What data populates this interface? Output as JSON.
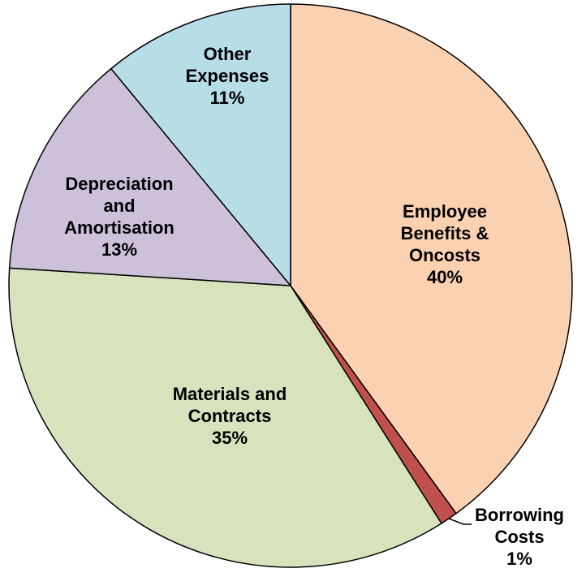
{
  "chart_data": {
    "type": "pie",
    "slices": [
      {
        "key": "employee",
        "lines": [
          "Employee",
          "Benefits &",
          "Oncosts"
        ],
        "percent_label": "40%",
        "value": 40,
        "color": "#fbd2b1"
      },
      {
        "key": "borrowing",
        "lines": [
          "Borrowing",
          "Costs"
        ],
        "percent_label": "1%",
        "value": 1,
        "color": "#c0504d"
      },
      {
        "key": "materials",
        "lines": [
          "Materials and",
          "Contracts"
        ],
        "percent_label": "35%",
        "value": 35,
        "color": "#d6e3bc"
      },
      {
        "key": "depreciation",
        "lines": [
          "Depreciation",
          "and",
          "Amortisation"
        ],
        "percent_label": "13%",
        "value": 13,
        "color": "#ccc0da"
      },
      {
        "key": "other",
        "lines": [
          "Other",
          "Expenses"
        ],
        "percent_label": "11%",
        "value": 11,
        "color": "#b7dde8"
      }
    ],
    "start": "top",
    "direction": "clockwise"
  }
}
